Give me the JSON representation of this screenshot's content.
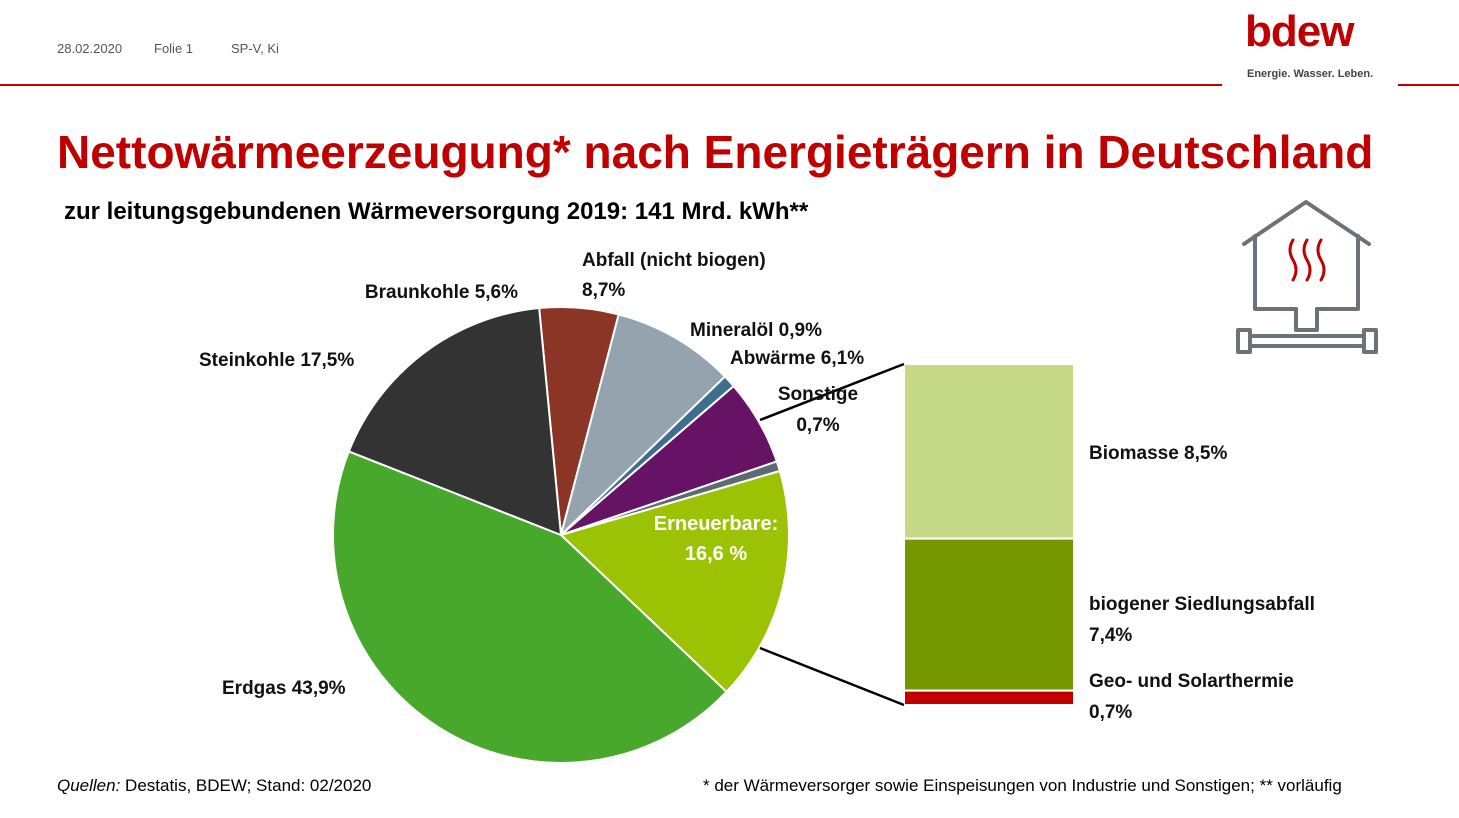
{
  "header": {
    "date": "28.02.2020",
    "slide": "Folie 1",
    "dept": "SP-V, Ki"
  },
  "logo": {
    "wordmark": "bdew",
    "tagline": "Energie. Wasser. Leben."
  },
  "title": "Nettowärmeerzeugung* nach Energieträgern in Deutschland",
  "subtitle": "zur leitungsgebundenen Wärmeversorgung 2019: 141 Mrd. kWh**",
  "chart_data": [
    {
      "type": "pie",
      "unit": "%",
      "slices": [
        {
          "name": "Braunkohle",
          "value": 5.6,
          "color": "#8b3526",
          "label": [
            "Braunkohle 5,6%"
          ]
        },
        {
          "name": "Abfall (nicht biogen)",
          "value": 8.7,
          "color": "#95a3ae",
          "label": [
            "Abfall (nicht biogen)",
            "8,7%"
          ]
        },
        {
          "name": "Mineralöl",
          "value": 0.9,
          "color": "#3e6d8e",
          "label": [
            "Mineralöl 0,9%"
          ]
        },
        {
          "name": "Abwärme",
          "value": 6.1,
          "color": "#661366",
          "label": [
            "Abwärme 6,1%"
          ]
        },
        {
          "name": "Sonstige",
          "value": 0.7,
          "color": "#5e6a71",
          "label": [
            "Sonstige",
            "0,7%"
          ]
        },
        {
          "name": "Erneuerbare",
          "value": 16.6,
          "color": "#9cc303",
          "label": [
            "Erneuerbare:",
            "16,6 %"
          ]
        },
        {
          "name": "Erdgas",
          "value": 43.9,
          "color": "#48a82c",
          "label": [
            "Erdgas 43,9%"
          ]
        },
        {
          "name": "Steinkohle",
          "value": 17.5,
          "color": "#333333",
          "label": [
            "Steinkohle 17,5%"
          ]
        }
      ]
    },
    {
      "type": "bar",
      "stacked": true,
      "title": "Erneuerbare",
      "unit": "%",
      "segments": [
        {
          "name": "Biomasse",
          "value": 8.5,
          "color": "#c5d986",
          "label": [
            "Biomasse 8,5%"
          ]
        },
        {
          "name": "biogener Siedlungsabfall",
          "value": 7.4,
          "color": "#759700",
          "label": [
            "biogener Siedlungsabfall",
            "7,4%"
          ]
        },
        {
          "name": "Geo- und Solarthermie",
          "value": 0.7,
          "color": "#c00000",
          "label": [
            "Geo- und Solarthermie",
            "0,7%"
          ]
        }
      ]
    }
  ],
  "footer": {
    "source_label": "Quellen:",
    "source_text": " Destatis, BDEW; Stand: 02/2020",
    "note": "* der Wärmeversorger sowie Einspeisungen von Industrie und Sonstigen; ** vorläufig"
  }
}
